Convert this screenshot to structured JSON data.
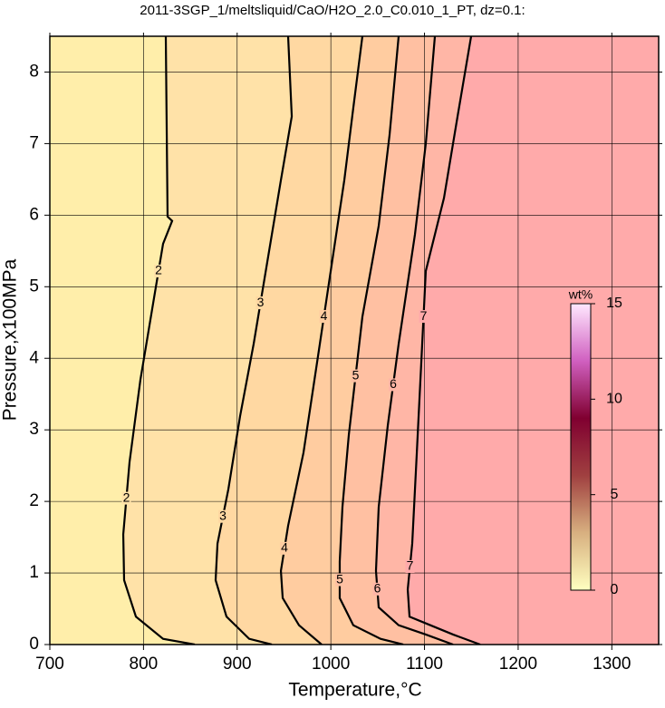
{
  "chart_data": {
    "type": "contour",
    "title": "2011-3SGP_1/meltsliquid/CaO/H2O_2.0_C0.010_1_PT, dz=0.1:",
    "x_label": "Temperature,°C",
    "y_label": "Pressure,x100MPa",
    "xlim": [
      700,
      1350
    ],
    "ylim": [
      0,
      8.5
    ],
    "xticks": [
      700,
      800,
      900,
      1000,
      1100,
      1200,
      1300
    ],
    "yticks": [
      0,
      1,
      2,
      3,
      4,
      5,
      6,
      7,
      8
    ],
    "grid": true,
    "background_color": "#ffeeaa",
    "series": [
      {
        "name": "2",
        "color": "#ffe2a8",
        "x": [
          823.8,
          825.7,
          830.6,
          820.9,
          811.2,
          796.7,
          785.1,
          778.4,
          779.3,
          791.9,
          820.9,
          854.8
        ],
        "values": [
          8.5,
          5.98,
          5.92,
          5.6,
          4.84,
          3.7,
          2.55,
          1.54,
          0.9,
          0.39,
          0.08,
          0
        ]
      },
      {
        "name": "3",
        "color": "#ffd8a2",
        "x": [
          954.4,
          958.3,
          946.7,
          932.2,
          917.6,
          903.1,
          890.6,
          879,
          877,
          888.6,
          912.8,
          937
        ],
        "values": [
          8.5,
          7.38,
          6.49,
          5.35,
          4.2,
          3.19,
          2.17,
          1.41,
          0.9,
          0.39,
          0.08,
          0
        ]
      },
      {
        "name": "4",
        "color": "#ffcca0",
        "x": [
          1033.7,
          1024,
          1014.4,
          999.9,
          985.4,
          970.8,
          954.4,
          946.7,
          948.6,
          966,
          990.2
        ],
        "values": [
          8.5,
          7.5,
          6.49,
          5.22,
          3.95,
          2.68,
          1.66,
          1.03,
          0.65,
          0.27,
          0
        ]
      },
      {
        "name": "5",
        "color": "#ffc0a2",
        "x": [
          1072.4,
          1062.7,
          1051.1,
          1033.7,
          1019.2,
          1012.4,
          1009.5,
          1009.5,
          1024,
          1053.1,
          1077.3
        ],
        "values": [
          8.5,
          7.12,
          5.85,
          4.58,
          2.93,
          1.92,
          1.16,
          0.65,
          0.27,
          0.08,
          0
        ]
      },
      {
        "name": "6",
        "color": "#ffb6a6",
        "x": [
          1111.1,
          1101.4,
          1089.8,
          1072.4,
          1060.8,
          1051.1,
          1048.2,
          1051.1,
          1072.4,
          1101.4,
          1130.5
        ],
        "values": [
          8.5,
          7.0,
          5.73,
          4.2,
          3.06,
          1.92,
          1.03,
          0.52,
          0.27,
          0.14,
          0
        ]
      },
      {
        "name": "7",
        "color": "#ffaaaa",
        "x": [
          1149.8,
          1135.3,
          1120.8,
          1101.4,
          1096.6,
          1091.8,
          1086.9,
          1082.1,
          1084,
          1106.3,
          1130.5,
          1159.5
        ],
        "values": [
          8.5,
          7.38,
          6.24,
          5.22,
          3.95,
          2.68,
          1.41,
          0.77,
          0.39,
          0.27,
          0.14,
          0
        ]
      }
    ],
    "colorbar": {
      "label": "wt%",
      "lim": [
        0,
        15
      ],
      "ticks": [
        0,
        5,
        10,
        15
      ],
      "colors": [
        "#ffffc0",
        "#d8b080",
        "#a04040",
        "#800030",
        "#d060c0",
        "#ffe8ff"
      ]
    }
  }
}
